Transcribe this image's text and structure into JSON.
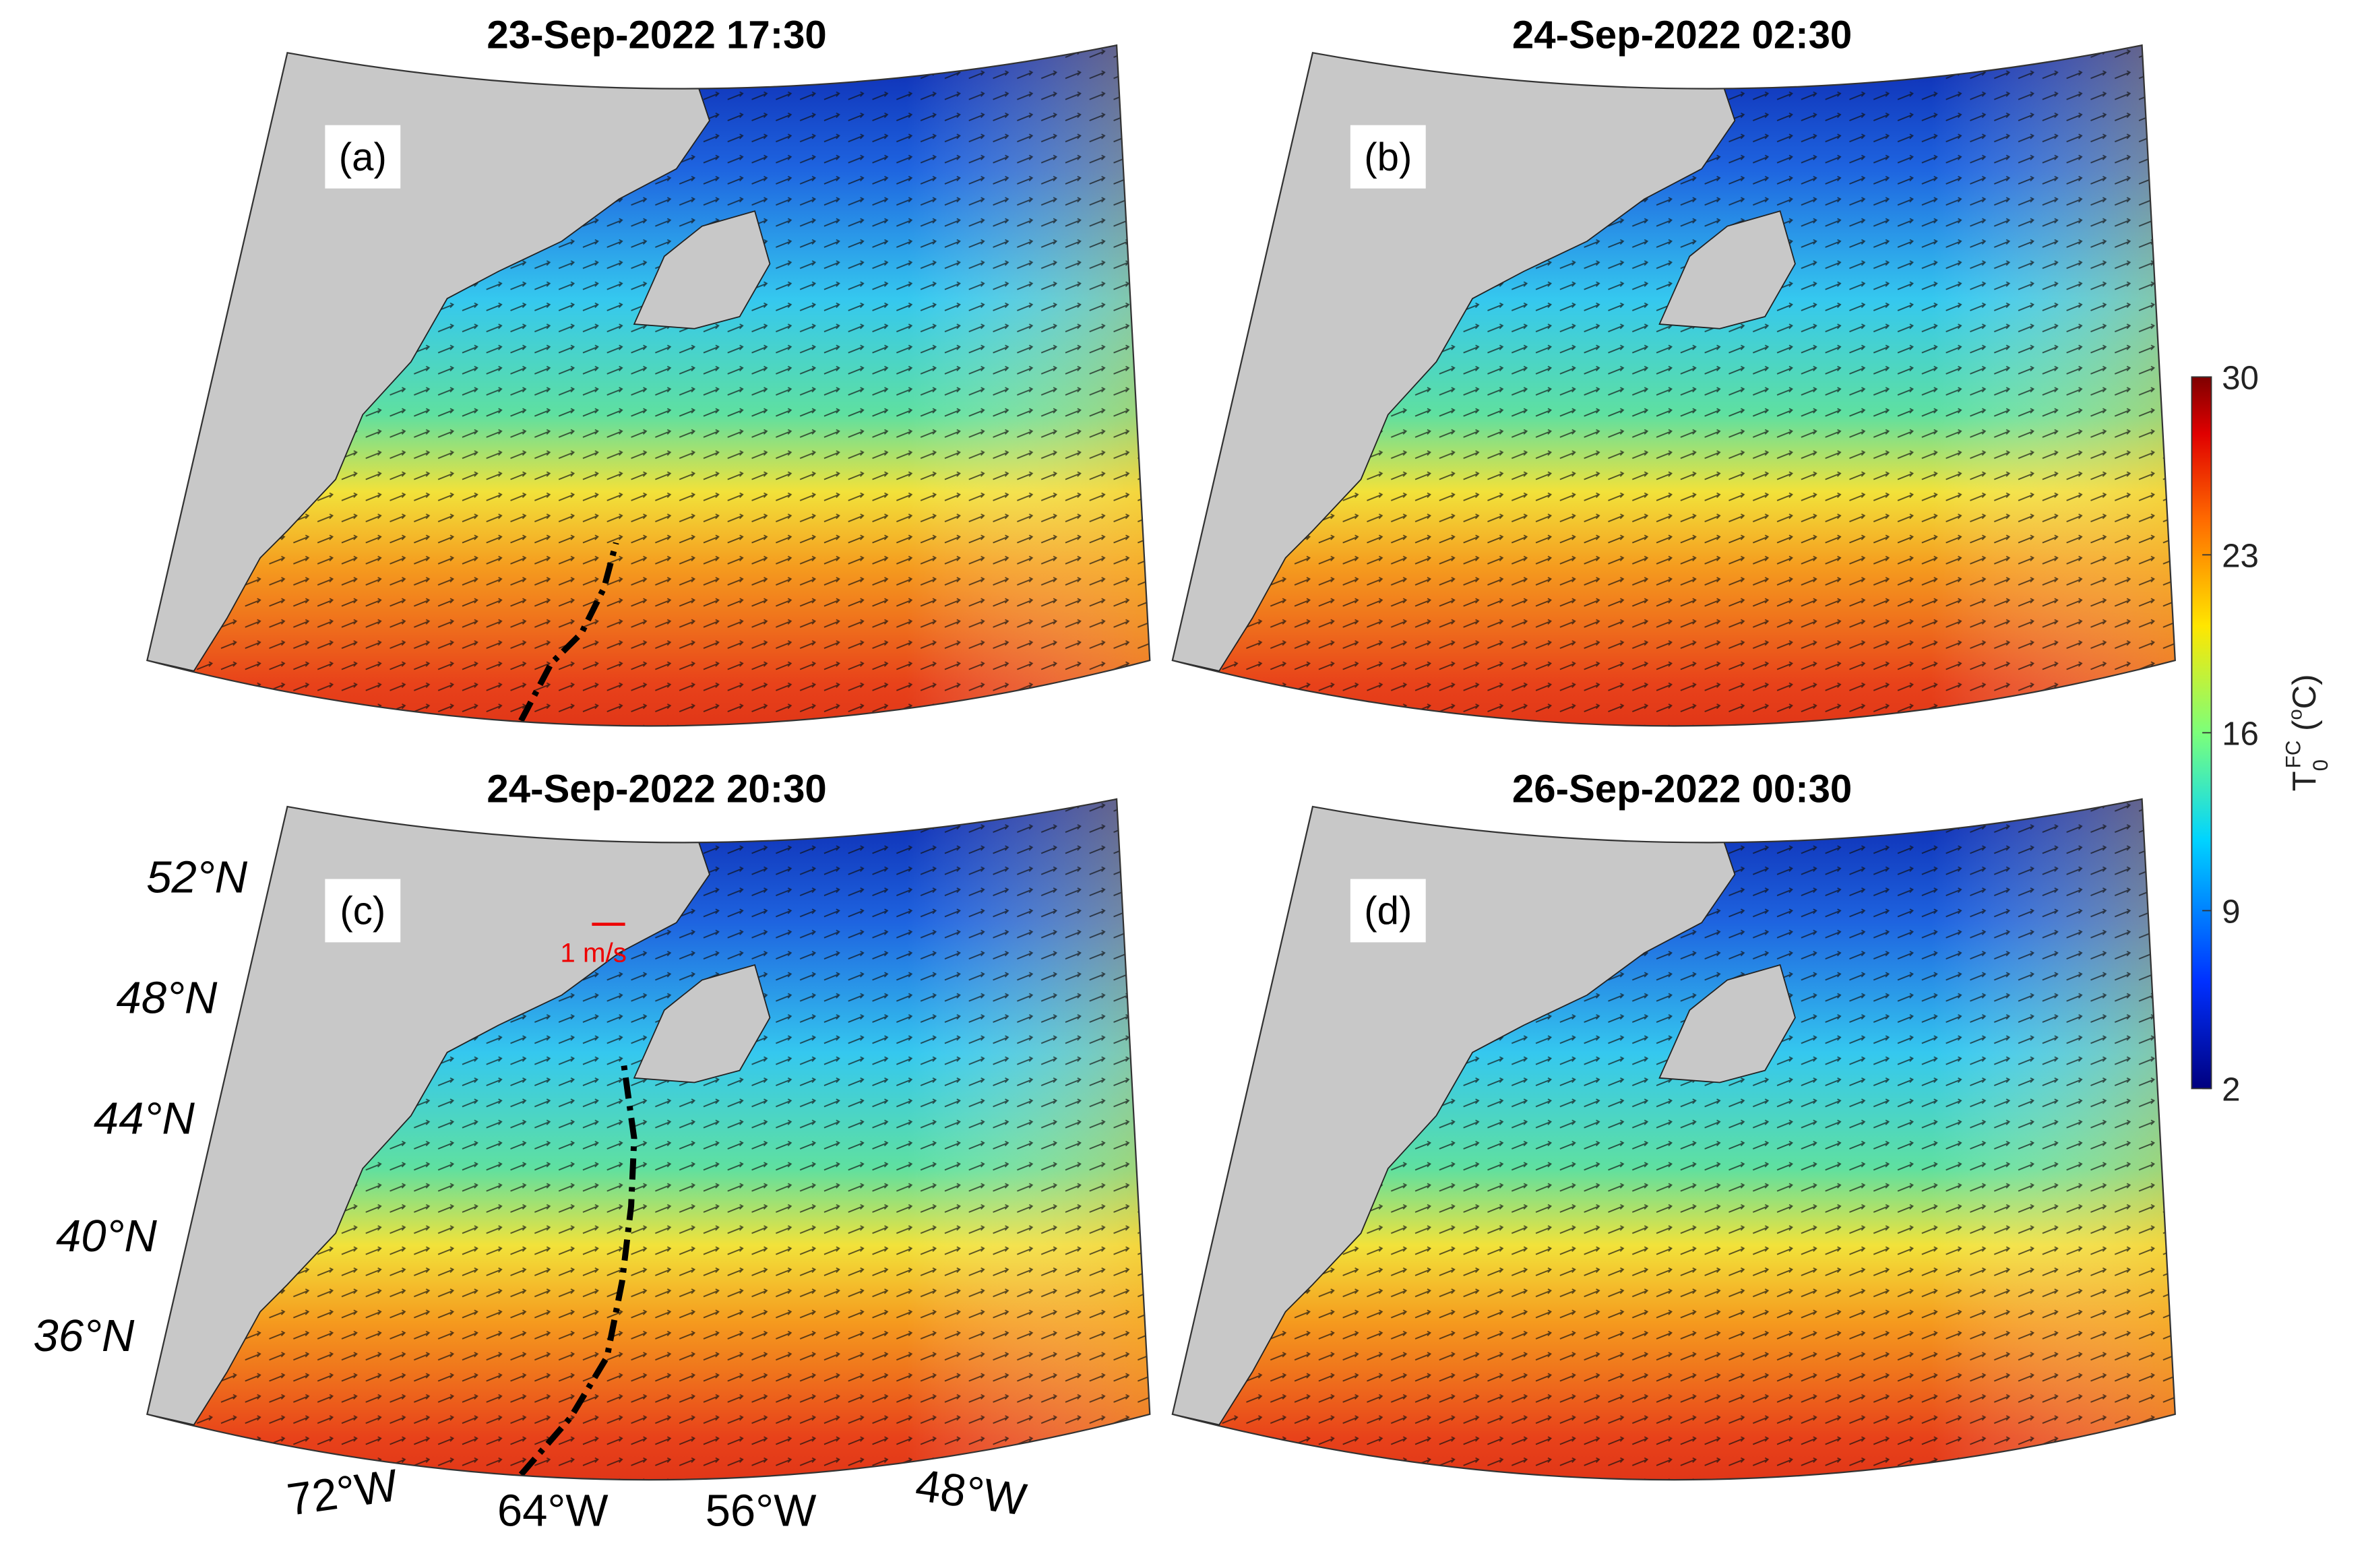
{
  "panels": [
    {
      "title": "23-Sep-2022 17:30",
      "label": "(a)"
    },
    {
      "title": "24-Sep-2022 02:30",
      "label": "(b)"
    },
    {
      "title": "24-Sep-2022 20:30",
      "label": "(c)"
    },
    {
      "title": "26-Sep-2022 00:30",
      "label": "(d)"
    }
  ],
  "latitude_labels": [
    {
      "value": 52,
      "label": "52°N"
    },
    {
      "value": 48,
      "label": "48°N"
    },
    {
      "value": 44,
      "label": "44°N"
    },
    {
      "value": 40,
      "label": "40°N"
    },
    {
      "value": 36,
      "label": "36°N"
    }
  ],
  "longitude_labels": [
    {
      "value": -72,
      "label": "72°W"
    },
    {
      "value": -64,
      "label": "64°W"
    },
    {
      "value": -56,
      "label": "56°W"
    },
    {
      "value": -48,
      "label": "48°W"
    }
  ],
  "scale_label": "1 m/s",
  "colorbar": {
    "label": {
      "base": "T",
      "sub": "0",
      "sup": "FC",
      "unit_open": " (",
      "unit_sup": "o",
      "unit_close": "C)"
    },
    "range": [
      2,
      30
    ],
    "ticks": [
      2,
      9,
      16,
      23,
      30
    ]
  }
}
